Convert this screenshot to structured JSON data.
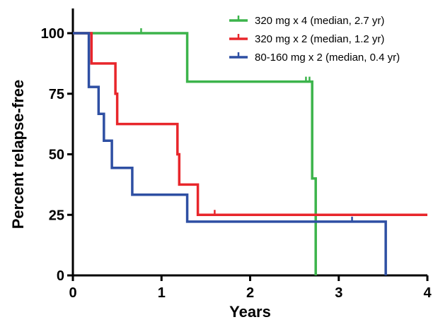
{
  "chart_data": {
    "type": "line",
    "step": true,
    "xlabel": "Years",
    "ylabel": "Percent relapse-free",
    "xlim": [
      0,
      4
    ],
    "ylim": [
      0,
      100
    ],
    "xticks": [
      0,
      1,
      2,
      3,
      4
    ],
    "yticks": [
      0,
      25,
      50,
      75,
      100
    ],
    "grid": false,
    "legend_position": "top-right",
    "series": [
      {
        "name": "320 mg x 4 (median, 2.7 yr)",
        "color": "#3cb44b",
        "x": [
          0,
          1.29,
          2.7,
          2.74,
          2.74
        ],
        "y": [
          100,
          80,
          40,
          0,
          0
        ],
        "censored": [
          [
            0.77,
            100
          ],
          [
            2.63,
            80
          ],
          [
            2.67,
            80
          ]
        ]
      },
      {
        "name": "320 mg x 2 (median, 1.2 yr)",
        "color": "#e8262b",
        "x": [
          0,
          0.21,
          0.48,
          0.5,
          1.18,
          1.2,
          1.41,
          4.0
        ],
        "y": [
          100,
          87.5,
          75,
          62.5,
          50,
          37.5,
          25,
          25
        ],
        "censored": [
          [
            1.6,
            25
          ]
        ]
      },
      {
        "name": "80-160 mg x 2 (median, 0.4 yr)",
        "color": "#2e4fa3",
        "x": [
          0,
          0.18,
          0.29,
          0.35,
          0.44,
          0.67,
          1.29,
          3.53,
          3.53
        ],
        "y": [
          100,
          77.8,
          66.7,
          55.6,
          44.4,
          33.3,
          22.2,
          0,
          0
        ],
        "censored": [
          [
            3.15,
            22.2
          ]
        ]
      }
    ]
  }
}
